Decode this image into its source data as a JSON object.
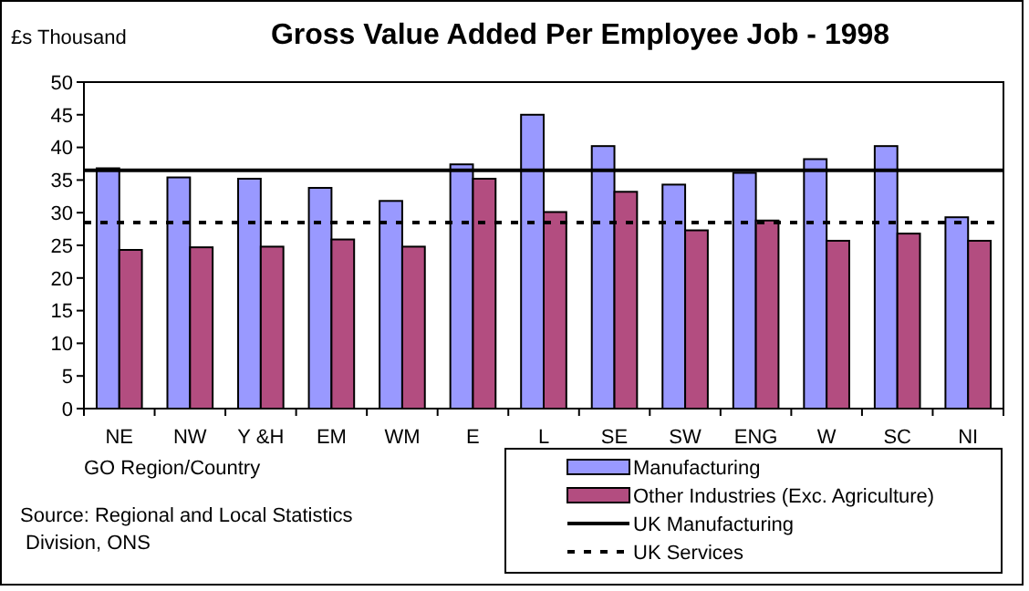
{
  "chart_data": {
    "type": "bar",
    "title": "Gross Value Added Per Employee Job - 1998",
    "ylabel": "£s Thousand",
    "xlabel": "GO Region/Country",
    "annotations": [
      "Source: Regional and Local Statistics Division, ONS"
    ],
    "categories": [
      "NE",
      "NW",
      "Y &H",
      "EM",
      "WM",
      "E",
      "L",
      "SE",
      "SW",
      "ENG",
      "W",
      "SC",
      "NI"
    ],
    "series": [
      {
        "name": "Manufacturing",
        "color": "#9999ff",
        "values": [
          36.8,
          35.4,
          35.2,
          33.8,
          31.8,
          37.4,
          45.0,
          40.2,
          34.3,
          36.1,
          38.2,
          40.2,
          29.3
        ]
      },
      {
        "name": "Other Industries (Exc. Agriculture)",
        "color": "#b34d80",
        "values": [
          24.3,
          24.7,
          24.8,
          25.9,
          24.8,
          35.2,
          30.1,
          33.2,
          27.3,
          28.8,
          25.7,
          26.8,
          25.7
        ]
      }
    ],
    "ref_lines": [
      {
        "axis": "y",
        "value": 36.5,
        "label": "UK Manufacturing",
        "color": "#000000",
        "line_style": "solid"
      },
      {
        "axis": "y",
        "value": 28.5,
        "label": "UK Services",
        "color": "#000000",
        "line_style": "dashed"
      }
    ],
    "ylim": [
      0,
      50
    ],
    "yticks": [
      0,
      5,
      10,
      15,
      20,
      25,
      30,
      35,
      40,
      45,
      50
    ],
    "grid": false,
    "legend": "bottom right"
  }
}
